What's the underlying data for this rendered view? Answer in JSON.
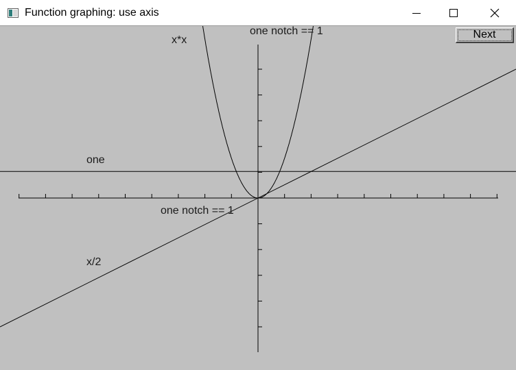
{
  "window": {
    "title": "Function graphing: use axis",
    "controls": [
      "minimize",
      "maximize",
      "close"
    ]
  },
  "graph": {
    "y_axis_label": "one notch == 1",
    "x_axis_label": "one notch == 1",
    "function_labels": {
      "square": "x*x",
      "constant": "one",
      "half": "x/2"
    }
  },
  "buttons": {
    "next_label": "Next"
  },
  "colors": {
    "background": "#c0c0c0",
    "titlebar": "#ffffff",
    "line": "#000000"
  }
}
